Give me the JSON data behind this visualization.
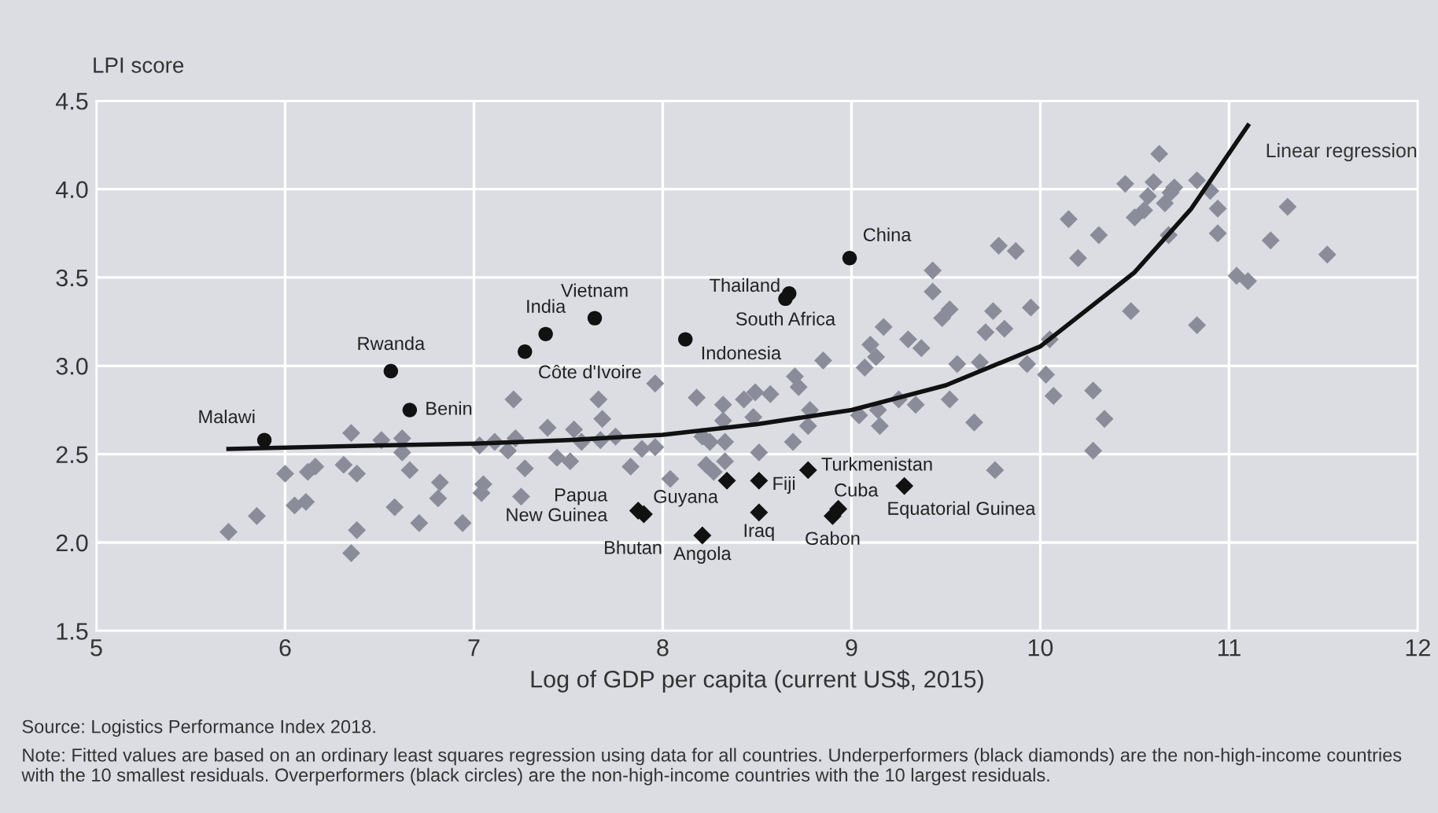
{
  "chart_data": {
    "type": "scatter",
    "ylabel": "LPI score",
    "xlabel": "Log of GDP per capita (current US$, 2015)",
    "xlim": [
      5,
      12
    ],
    "xticks": [
      5,
      6,
      7,
      8,
      9,
      10,
      11,
      12
    ],
    "ylim": [
      1.5,
      4.5
    ],
    "yticks": [
      1.5,
      {
        "value": 2,
        "label": "2.0"
      },
      2.5,
      {
        "value": 3,
        "label": "3.0"
      },
      3.5,
      {
        "value": 4,
        "label": "4.0"
      },
      4.5
    ],
    "grid": true,
    "annotations": [
      "Source: Logistics Performance Index 2018.",
      "Note: Fitted values are based on an ordinary least squares regression using data for all countries. Underperformers (black diamonds) are the non-high-income countries with the 10 smallest residuals. Overperformers (black circles) are the non-high-income countries with the 10 largest residuals."
    ],
    "series": [
      {
        "marker": "diamond",
        "color": "#8a8c9a",
        "x": [
          5.7,
          5.85,
          6.0,
          6.05,
          6.11,
          6.12,
          6.16,
          6.31,
          6.35,
          6.38,
          6.38,
          6.35,
          6.51,
          6.58,
          6.62,
          6.62,
          6.66,
          6.71,
          6.82,
          6.81,
          6.94,
          7.03,
          7.05,
          7.04,
          7.11,
          7.18,
          7.21,
          7.22,
          7.27,
          7.25,
          7.39,
          7.44,
          7.51,
          7.53,
          7.57,
          7.66,
          7.68,
          7.67,
          7.75,
          7.83,
          7.89,
          7.96,
          7.96,
          8.04,
          8.18,
          8.21,
          8.25,
          8.23,
          8.27,
          8.32,
          8.32,
          8.33,
          8.33,
          8.43,
          8.49,
          8.57,
          8.48,
          8.51,
          8.69,
          8.7,
          8.72,
          8.78,
          8.77,
          8.85,
          9.04,
          9.07,
          9.1,
          9.13,
          9.17,
          9.15,
          9.14,
          9.3,
          9.37,
          9.34,
          9.25,
          9.43,
          9.43,
          9.48,
          9.52,
          9.52,
          9.56,
          9.65,
          9.68,
          9.71,
          9.78,
          9.87,
          9.75,
          9.81,
          9.76,
          9.95,
          9.93,
          10.03,
          10.05,
          10.07,
          10.15,
          10.2,
          10.31,
          10.28,
          10.34,
          10.28,
          10.45,
          10.5,
          10.55,
          10.57,
          10.6,
          10.63,
          10.66,
          10.69,
          10.71,
          10.68,
          10.48,
          10.83,
          10.9,
          10.94,
          10.94,
          10.83,
          11.04,
          11.1,
          11.22,
          11.31,
          11.52
        ],
        "values": [
          2.06,
          2.15,
          2.39,
          2.21,
          2.23,
          2.4,
          2.43,
          2.44,
          2.62,
          2.39,
          2.07,
          1.94,
          2.58,
          2.2,
          2.59,
          2.51,
          2.41,
          2.11,
          2.34,
          2.25,
          2.11,
          2.55,
          2.33,
          2.28,
          2.57,
          2.52,
          2.81,
          2.59,
          2.42,
          2.26,
          2.65,
          2.48,
          2.46,
          2.64,
          2.57,
          2.81,
          2.7,
          2.58,
          2.6,
          2.43,
          2.53,
          2.9,
          2.54,
          2.36,
          2.82,
          2.6,
          2.57,
          2.44,
          2.4,
          2.78,
          2.69,
          2.57,
          2.46,
          2.81,
          2.85,
          2.84,
          2.71,
          2.51,
          2.57,
          2.94,
          2.88,
          2.75,
          2.66,
          3.03,
          2.72,
          2.99,
          3.12,
          3.05,
          3.22,
          2.66,
          2.75,
          3.15,
          3.1,
          2.78,
          2.81,
          3.54,
          3.42,
          3.27,
          3.32,
          2.81,
          3.01,
          2.68,
          3.02,
          3.19,
          3.68,
          3.65,
          3.31,
          3.21,
          2.41,
          3.33,
          3.01,
          2.95,
          3.15,
          2.83,
          3.83,
          3.61,
          3.74,
          2.86,
          2.7,
          2.52,
          4.03,
          3.84,
          3.88,
          3.96,
          4.04,
          4.2,
          3.92,
          3.98,
          4.01,
          3.74,
          3.31,
          4.05,
          3.99,
          3.89,
          3.75,
          3.23,
          3.51,
          3.48,
          3.71,
          3.9,
          3.63
        ]
      },
      {
        "marker": "circle",
        "color": "#111111",
        "x": [
          5.89,
          6.56,
          6.66,
          7.38,
          7.27,
          7.64,
          8.12,
          8.67,
          8.65,
          8.99
        ],
        "values": [
          2.58,
          2.97,
          2.75,
          3.18,
          3.08,
          3.27,
          3.15,
          3.41,
          3.38,
          3.61
        ],
        "value_labels": [
          "Malawi",
          "Rwanda",
          "Benin",
          "India",
          "Côte d'Ivoire",
          "Vietnam",
          "Indonesia",
          "Thailand",
          "South Africa",
          "China"
        ]
      },
      {
        "marker": "diamond",
        "color": "#111111",
        "x": [
          7.87,
          7.9,
          8.34,
          8.51,
          8.51,
          8.21,
          8.77,
          8.93,
          8.9,
          9.28
        ],
        "values": [
          2.18,
          2.16,
          2.35,
          2.35,
          2.17,
          2.04,
          2.41,
          2.19,
          2.15,
          2.32
        ],
        "value_labels": [
          "Papua\nNew Guinea",
          "Bhutan",
          "Guyana",
          "Fiji",
          "Iraq",
          "Angola",
          "Turkmenistan",
          "Cuba",
          "Gabon",
          "Equatorial Guinea"
        ]
      },
      {
        "type": "line",
        "name": "Linear regression",
        "marker": "none",
        "line_style": "solid",
        "color": "#111111",
        "x": [
          5.7,
          6.5,
          7.0,
          7.5,
          8.0,
          8.5,
          9.0,
          9.5,
          10.0,
          10.5,
          10.8,
          11.1
        ],
        "values": [
          2.53,
          2.55,
          2.56,
          2.58,
          2.61,
          2.67,
          2.75,
          2.89,
          3.11,
          3.53,
          3.89,
          4.36
        ]
      }
    ]
  }
}
